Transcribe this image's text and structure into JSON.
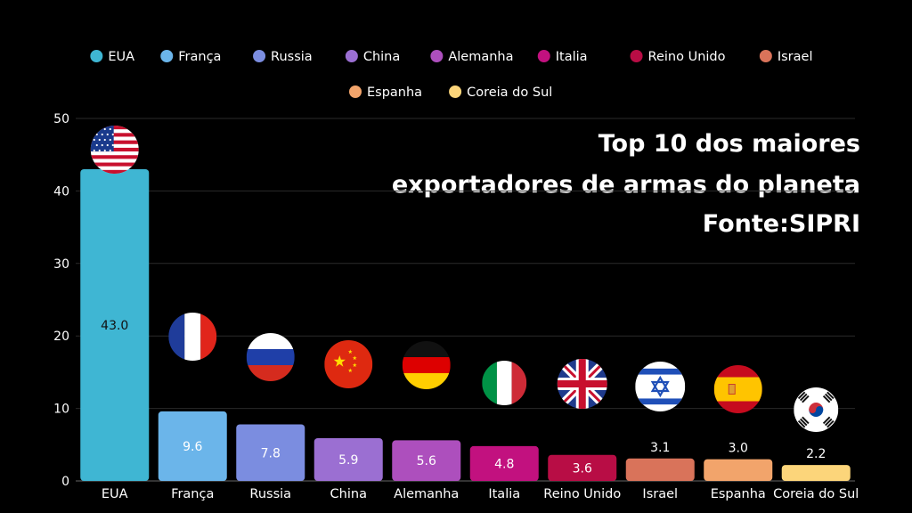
{
  "title_lines": [
    "Top 10 dos maiores",
    "exportadores de armas do planeta",
    "Fonte:SIPRI"
  ],
  "chart_data": {
    "type": "bar",
    "categories": [
      "EUA",
      "França",
      "Russia",
      "China",
      "Alemanha",
      "Italia",
      "Reino Unido",
      "Israel",
      "Espanha",
      "Coreia do Sul"
    ],
    "values": [
      43.0,
      9.6,
      7.8,
      5.9,
      5.6,
      4.8,
      3.6,
      3.1,
      3.0,
      2.2
    ],
    "data_labels": [
      "43.0",
      "9.6",
      "7.8",
      "5.9",
      "5.6",
      "4.8",
      "3.6",
      "3.1",
      "3.0",
      "2.2"
    ],
    "colors": [
      "#3fb6d3",
      "#6bb5ea",
      "#7b8de0",
      "#9b6fd2",
      "#ad4fbd",
      "#c2117f",
      "#b80d45",
      "#d9735a",
      "#f2a46b",
      "#fcd57a"
    ],
    "yticks": [
      "0",
      "10",
      "20",
      "30",
      "40",
      "50"
    ],
    "ylim": [
      0,
      50
    ],
    "grid": true,
    "legend_position": "top",
    "flag_icons": [
      "usa-flag-icon",
      "france-flag-icon",
      "russia-flag-icon",
      "china-flag-icon",
      "germany-flag-icon",
      "italy-flag-icon",
      "uk-flag-icon",
      "israel-flag-icon",
      "spain-flag-icon",
      "south-korea-flag-icon"
    ]
  }
}
